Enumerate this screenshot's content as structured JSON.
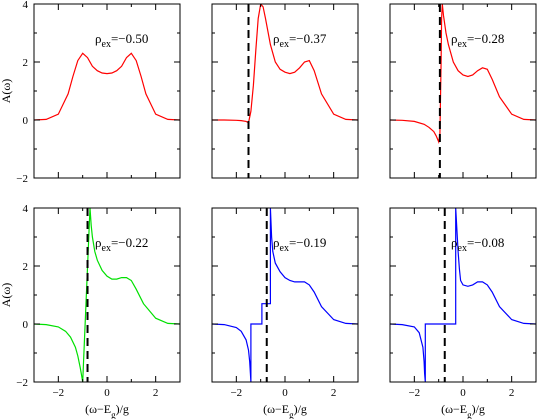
{
  "colors": {
    "red": "#ff0000",
    "green": "#00e000",
    "blue": "#0000ff",
    "dashed": "#000000"
  },
  "chart_data": [
    {
      "type": "line",
      "panel": "top-left",
      "rho_symbol": "ρ",
      "rho_sub": "ex",
      "rho_value": "=−0.50",
      "color": "red",
      "xlim": [
        -3,
        3
      ],
      "ylim": [
        -2,
        4
      ],
      "dashed_x": null,
      "show_xticklabels": false,
      "show_yticklabels": true,
      "ylabel": "A(ω)",
      "xlabel": "",
      "x": [
        -3.0,
        -2.5,
        -2.0,
        -1.6,
        -1.4,
        -1.2,
        -1.0,
        -0.8,
        -0.6,
        -0.4,
        -0.2,
        0.0,
        0.2,
        0.4,
        0.6,
        0.8,
        1.0,
        1.2,
        1.4,
        1.6,
        2.0,
        2.5,
        3.0
      ],
      "y": [
        0.0,
        0.02,
        0.2,
        0.9,
        1.5,
        2.05,
        2.3,
        2.15,
        1.85,
        1.7,
        1.62,
        1.6,
        1.62,
        1.7,
        1.85,
        2.15,
        2.3,
        2.05,
        1.5,
        0.9,
        0.2,
        0.02,
        0.0
      ]
    },
    {
      "type": "line",
      "panel": "top-middle",
      "rho_symbol": "ρ",
      "rho_sub": "ex",
      "rho_value": "=−0.37",
      "color": "red",
      "xlim": [
        -3,
        3
      ],
      "ylim": [
        -2,
        4
      ],
      "dashed_x": -1.5,
      "show_xticklabels": false,
      "show_yticklabels": false,
      "x": [
        -3.0,
        -2.5,
        -2.0,
        -1.8,
        -1.6,
        -1.5,
        -1.4,
        -1.3,
        -1.2,
        -1.1,
        -1.0,
        -0.9,
        -0.8,
        -0.6,
        -0.4,
        -0.2,
        0.0,
        0.2,
        0.4,
        0.6,
        0.8,
        1.0,
        1.2,
        1.5,
        2.0,
        2.5,
        3.0
      ],
      "y": [
        0.0,
        0.0,
        -0.01,
        -0.02,
        -0.05,
        -0.1,
        0.3,
        1.2,
        2.4,
        3.5,
        4.0,
        3.9,
        3.5,
        2.6,
        2.0,
        1.75,
        1.65,
        1.6,
        1.65,
        1.8,
        2.0,
        2.05,
        1.7,
        0.9,
        0.2,
        0.02,
        0.0
      ]
    },
    {
      "type": "line",
      "panel": "top-right",
      "rho_symbol": "ρ",
      "rho_sub": "ex",
      "rho_value": "=−0.28",
      "color": "red",
      "xlim": [
        -3,
        3
      ],
      "ylim": [
        -2,
        4
      ],
      "dashed_x": -0.95,
      "show_xticklabels": false,
      "show_yticklabels": false,
      "x": [
        -3.0,
        -2.5,
        -2.0,
        -1.6,
        -1.4,
        -1.2,
        -1.1,
        -1.0,
        -0.95,
        -0.9,
        -0.88,
        -0.85,
        -0.8,
        -0.7,
        -0.6,
        -0.4,
        -0.2,
        0.0,
        0.2,
        0.4,
        0.6,
        0.8,
        1.0,
        1.2,
        1.5,
        2.0,
        2.5,
        3.0
      ],
      "y": [
        0.0,
        -0.01,
        -0.05,
        -0.15,
        -0.25,
        -0.4,
        -0.55,
        -0.75,
        -0.5,
        2.0,
        3.5,
        4.0,
        3.6,
        3.0,
        2.6,
        2.0,
        1.7,
        1.55,
        1.5,
        1.55,
        1.7,
        1.8,
        1.75,
        1.4,
        0.8,
        0.2,
        0.02,
        0.0
      ]
    },
    {
      "type": "line",
      "panel": "bottom-left",
      "rho_symbol": "ρ",
      "rho_sub": "ex",
      "rho_value": "=−0.22",
      "color": "green",
      "xlim": [
        -3,
        3
      ],
      "ylim": [
        -2,
        4
      ],
      "dashed_x": -0.8,
      "show_xticklabels": true,
      "show_yticklabels": true,
      "ylabel": "A(ω)",
      "xlabel": "(ω−E",
      "x": [
        -3.0,
        -2.5,
        -2.0,
        -1.7,
        -1.5,
        -1.3,
        -1.2,
        -1.1,
        -1.05,
        -1.0,
        -0.7,
        -0.65,
        -0.6,
        -0.5,
        -0.4,
        -0.2,
        0.0,
        0.2,
        0.4,
        0.6,
        0.8,
        1.0,
        1.2,
        1.5,
        2.0,
        2.5,
        3.0
      ],
      "y": [
        0.0,
        -0.02,
        -0.1,
        -0.25,
        -0.45,
        -0.8,
        -1.1,
        -1.5,
        -1.75,
        -2.0,
        4.0,
        3.4,
        3.0,
        2.5,
        2.2,
        1.85,
        1.65,
        1.55,
        1.55,
        1.6,
        1.6,
        1.5,
        1.2,
        0.7,
        0.2,
        0.02,
        0.0
      ]
    },
    {
      "type": "line",
      "panel": "bottom-middle",
      "rho_symbol": "ρ",
      "rho_sub": "ex",
      "rho_value": "=−0.19",
      "color": "blue",
      "xlim": [
        -3,
        3
      ],
      "ylim": [
        -2,
        4
      ],
      "dashed_x": -0.75,
      "show_xticklabels": true,
      "show_yticklabels": false,
      "xlabel": "(ω−E",
      "x": [
        -3.0,
        -2.5,
        -2.0,
        -1.8,
        -1.6,
        -1.5,
        -1.45,
        -1.42,
        -1.4,
        -1.4,
        -0.95,
        -0.95,
        -0.6,
        -0.6,
        -0.55,
        -0.5,
        -0.4,
        -0.2,
        0.0,
        0.2,
        0.4,
        0.6,
        0.8,
        1.0,
        1.2,
        1.5,
        2.0,
        2.5,
        3.0
      ],
      "y": [
        0.0,
        -0.02,
        -0.12,
        -0.25,
        -0.55,
        -0.9,
        -1.3,
        -1.7,
        -2.0,
        0.0,
        0.0,
        0.7,
        0.7,
        4.0,
        3.0,
        2.5,
        2.1,
        1.8,
        1.6,
        1.5,
        1.45,
        1.45,
        1.45,
        1.35,
        1.1,
        0.6,
        0.15,
        0.02,
        0.0
      ]
    },
    {
      "type": "line",
      "panel": "bottom-right",
      "rho_symbol": "ρ",
      "rho_sub": "ex",
      "rho_value": "=−0.08",
      "color": "blue",
      "xlim": [
        -3,
        3
      ],
      "ylim": [
        -2,
        4
      ],
      "dashed_x": -0.75,
      "show_xticklabels": true,
      "show_yticklabels": false,
      "xlabel": "(ω−E",
      "x": [
        -3.0,
        -2.5,
        -2.0,
        -1.8,
        -1.65,
        -1.6,
        -1.58,
        -1.55,
        -1.55,
        -0.3,
        -0.3,
        -0.2,
        -0.15,
        -0.1,
        0.0,
        0.2,
        0.4,
        0.6,
        0.8,
        1.0,
        1.2,
        1.5,
        2.0,
        2.5,
        3.0
      ],
      "y": [
        0.0,
        -0.02,
        -0.1,
        -0.3,
        -0.8,
        -1.3,
        -1.7,
        -2.0,
        0.0,
        0.0,
        4.0,
        2.5,
        1.9,
        1.5,
        1.35,
        1.3,
        1.35,
        1.45,
        1.45,
        1.35,
        1.1,
        0.6,
        0.15,
        0.02,
        0.0
      ]
    }
  ],
  "axes_text": {
    "xlabel_main": "(ω−E",
    "xlabel_sub": "g",
    "xlabel_tail": ")/g",
    "ylabel": "A(ω)",
    "yticks": [
      "−2",
      "0",
      "2",
      "4"
    ],
    "xticks": [
      "−2",
      "0",
      "2"
    ]
  }
}
